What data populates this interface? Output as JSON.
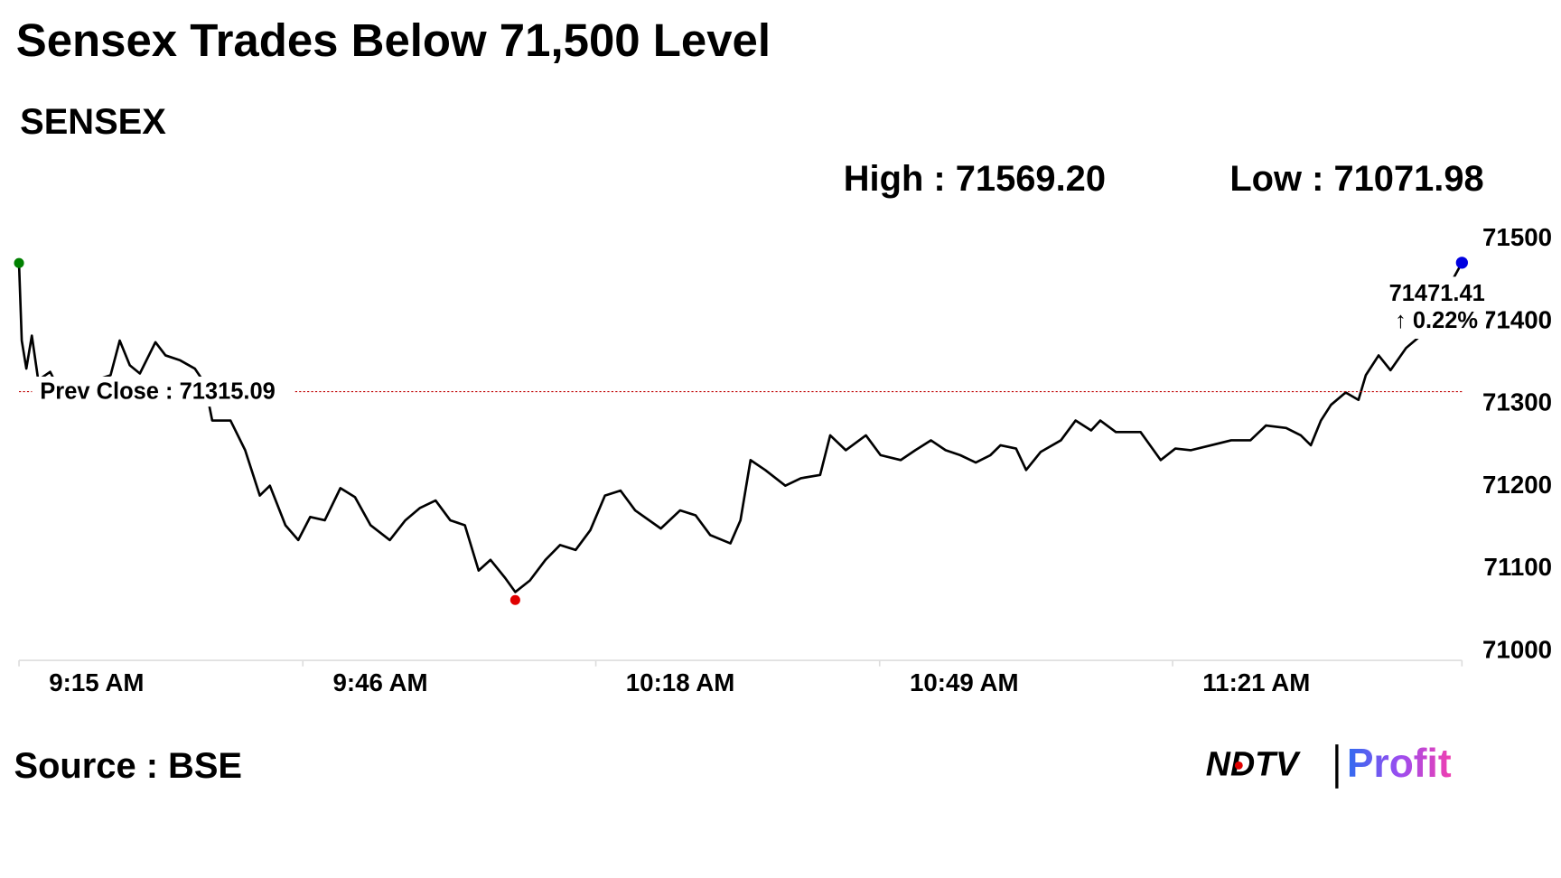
{
  "chart_data": {
    "type": "line",
    "title": "Sensex Trades Below 71,500 Level",
    "subtitle": "SENSEX",
    "high_label": "High : 71569.20",
    "low_label": "Low : 71071.98",
    "source": "Source : BSE",
    "brand": [
      "NDTV",
      "Profit"
    ],
    "color": "#000000",
    "start_color": "#008000",
    "low_color": "#e00000",
    "end_color": "#0000e0",
    "prev_close": {
      "value": 71315.09,
      "label": "Prev Close : 71315.09",
      "color": "#c00000"
    },
    "last_label": "71471.41",
    "change_label": "↑ 0.22%",
    "change_color": "#008000",
    "xlim": [
      555,
      712.6
    ],
    "xticks": [
      {
        "value": 555,
        "label": "9:15 AM"
      },
      {
        "value": 586,
        "label": "9:46 AM"
      },
      {
        "value": 618,
        "label": "10:18 AM"
      },
      {
        "value": 649,
        "label": "10:49 AM"
      },
      {
        "value": 681,
        "label": "11:21 AM"
      }
    ],
    "ylim": [
      71000,
      71500
    ],
    "yticks": [
      71000,
      71100,
      71200,
      71300,
      71400,
      71500
    ],
    "x": [
      555,
      555.3,
      555.8,
      556.4,
      557.1,
      558.4,
      559.0,
      560.6,
      562.2,
      563.9,
      565.0,
      566.0,
      567.1,
      568.2,
      569.9,
      571.0,
      572.6,
      574.2,
      575.3,
      576.1,
      578.1,
      579.7,
      581.3,
      582.4,
      584.1,
      585.5,
      586.8,
      588.4,
      590.1,
      591.7,
      593.4,
      595.5,
      597.2,
      598.8,
      600.5,
      602.1,
      603.7,
      605.2,
      606.5,
      608.1,
      609.2,
      610.8,
      612.5,
      614.1,
      615.8,
      617.4,
      619.0,
      620.7,
      622.3,
      625.1,
      627.2,
      628.9,
      630.5,
      632.7,
      633.8,
      634.9,
      636.5,
      638.7,
      640.4,
      642.5,
      643.6,
      645.3,
      647.5,
      649.1,
      651.3,
      652.9,
      654.6,
      656.2,
      657.8,
      659.5,
      661.1,
      662.2,
      663.9,
      665.0,
      666.6,
      668.8,
      670.4,
      672.1,
      673.1,
      674.8,
      677.5,
      679.7,
      681.3,
      683.0,
      685.2,
      687.4,
      689.5,
      691.2,
      693.4,
      695.0,
      696.1,
      697.2,
      698.3,
      699.9,
      701.3,
      702.1,
      703.5,
      704.8,
      706.5,
      708.1,
      710.3,
      711.4,
      712.6
    ],
    "values": [
      71471,
      71377,
      71343,
      71383,
      71329,
      71339,
      71326,
      71331,
      71325,
      71331,
      71335,
      71377,
      71347,
      71337,
      71375,
      71359,
      71353,
      71343,
      71325,
      71280,
      71280,
      71244,
      71189,
      71201,
      71153,
      71135,
      71163,
      71159,
      71198,
      71187,
      71153,
      71135,
      71159,
      71174,
      71183,
      71159,
      71153,
      71098,
      71111,
      71089,
      71071.98,
      71086,
      71111,
      71129,
      71123,
      71147,
      71189,
      71195,
      71171,
      71149,
      71171,
      71165,
      71141,
      71131,
      71159,
      71232,
      71220,
      71201,
      71210,
      71214,
      71262,
      71244,
      71262,
      71238,
      71232,
      71244,
      71256,
      71244,
      71238,
      71229,
      71238,
      71250,
      71246,
      71220,
      71242,
      71256,
      71280,
      71268,
      71280,
      71266,
      71266,
      71232,
      71246,
      71244,
      71250,
      71256,
      71256,
      71274,
      71271,
      71262,
      71250,
      71280,
      71299,
      71314,
      71305,
      71335,
      71359,
      71341,
      71368,
      71383,
      71426,
      71447,
      71471.41
    ]
  }
}
